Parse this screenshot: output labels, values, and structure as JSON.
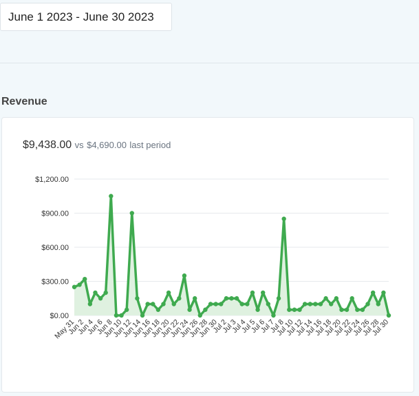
{
  "date_range": {
    "label": "June 1 2023 - June 30 2023"
  },
  "section": {
    "title": "Revenue"
  },
  "summary": {
    "total": "$9,438.00",
    "vs_label": "vs",
    "previous": "$4,690.00",
    "previous_suffix": "last period"
  },
  "colors": {
    "line": "#3faa4f",
    "fill": "#dff1e0",
    "grid": "#e6e9ec",
    "axis_text": "#333333"
  },
  "chart_data": {
    "type": "area",
    "title": "",
    "xlabel": "",
    "ylabel": "",
    "ylim": [
      0,
      1200
    ],
    "y_ticks": [
      "$0.00",
      "$300.00",
      "$600.00",
      "$900.00",
      "$1,200.00"
    ],
    "y_tick_values": [
      0,
      300,
      600,
      900,
      1200
    ],
    "x_tick_labels": [
      "May 31",
      "Jun 2",
      "Jun 4",
      "Jun 6",
      "Jun 8",
      "Jun 10",
      "Jun 12",
      "Jun 14",
      "Jun 16",
      "Jun 18",
      "Jun 20",
      "Jun 22",
      "Jun 24",
      "Jun 26",
      "Jun 28",
      "Jun 30",
      "Jul 2",
      "Jul 3",
      "Jul 4",
      "Jul 5",
      "Jul 6",
      "Jul 7",
      "Jul 8",
      "Jul 10",
      "Jul 12",
      "Jul 14",
      "Jul 16",
      "Jul 18",
      "Jul 20",
      "Jul 22",
      "Jul 24",
      "Jul 26",
      "Jul 28",
      "Jul 30"
    ],
    "grid": "horizontal",
    "series": [
      {
        "values": [
          250,
          270,
          320,
          100,
          200,
          150,
          200,
          1050,
          0,
          0,
          50,
          900,
          150,
          0,
          100,
          100,
          50,
          100,
          200,
          100,
          150,
          350,
          50,
          150,
          0,
          50,
          100,
          100,
          100,
          150,
          150,
          150,
          100,
          100,
          200,
          50,
          200,
          100,
          0,
          150,
          850,
          50,
          50,
          50,
          100,
          100,
          100,
          100,
          150,
          100,
          150,
          50,
          50,
          150,
          50,
          50,
          100,
          200,
          100,
          200,
          0
        ]
      }
    ]
  }
}
